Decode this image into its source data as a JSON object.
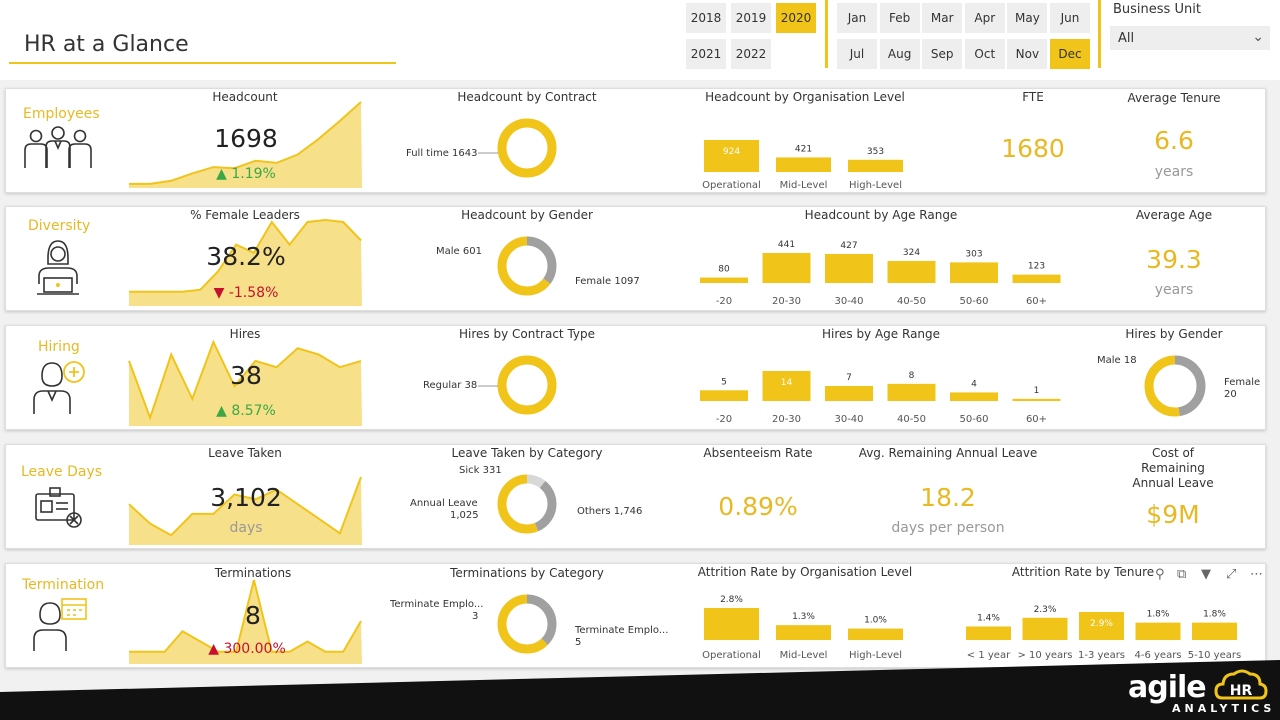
{
  "header": {
    "title": "HR at a Glance",
    "years": [
      "2018",
      "2019",
      "2020",
      "2021",
      "2022"
    ],
    "selected_year": "2020",
    "months": [
      "Jan",
      "Feb",
      "Mar",
      "Apr",
      "May",
      "Jun",
      "Jul",
      "Aug",
      "Sep",
      "Oct",
      "Nov",
      "Dec"
    ],
    "selected_month": "Dec",
    "business_unit_label": "Business Unit",
    "business_unit_value": "All"
  },
  "colors": {
    "accent": "#f0c419",
    "accent_light": "#f7e08a",
    "gray": "#a0a0a0",
    "up": "#3aa845",
    "down": "#c8102e"
  },
  "employees": {
    "label": "Employees",
    "icon": "employees-group-icon",
    "headcount_title": "Headcount",
    "headcount": "1698",
    "headcount_delta": "1.19%",
    "contract_title": "Headcount by Contract",
    "contract_label": "Full time 1643",
    "org_title": "Headcount by Organisation Level",
    "fte_title": "FTE",
    "fte": "1680",
    "tenure_title": "Average Tenure",
    "tenure": "6.6",
    "tenure_unit": "years"
  },
  "diversity": {
    "label": "Diversity",
    "icon": "female-employee-laptop-icon",
    "leaders_title": "% Female Leaders",
    "leaders": "38.2%",
    "leaders_delta": "-1.58%",
    "gender_title": "Headcount by Gender",
    "male_label": "Male 601",
    "female_label": "Female 1097",
    "age_title": "Headcount by Age Range",
    "avg_age_title": "Average Age",
    "avg_age": "39.3",
    "avg_age_unit": "years"
  },
  "hiring": {
    "label": "Hiring",
    "icon": "hiring-person-plus-icon",
    "hires_title": "Hires",
    "hires": "38",
    "hires_delta": "8.57%",
    "contract_title": "Hires by Contract Type",
    "contract_label": "Regular 38",
    "age_title": "Hires by Age Range",
    "gender_title": "Hires by Gender",
    "male_label": "Male 18",
    "female_label_1": "Female",
    "female_label_2": "20"
  },
  "leave": {
    "label": "Leave Days",
    "icon": "id-badge-cancel-icon",
    "taken_title": "Leave Taken",
    "taken": "3,102",
    "taken_unit": "days",
    "category_title": "Leave Taken by Category",
    "sick_label": "Sick 331",
    "annual_label_1": "Annual Leave",
    "annual_label_2": "1,025",
    "others_label": "Others 1,746",
    "absent_title": "Absenteeism Rate",
    "absent": "0.89%",
    "remaining_title": "Avg. Remaining Annual Leave",
    "remaining": "18.2",
    "remaining_unit": "days per person",
    "cost_title_1": "Cost of Remaining",
    "cost_title_2": "Annual Leave",
    "cost": "$9M"
  },
  "termination": {
    "label": "Termination",
    "icon": "employee-calendar-icon",
    "terms_title": "Terminations",
    "terms": "8",
    "terms_delta": "300.00%",
    "category_title": "Terminations by Category",
    "cat1_label_1": "Terminate Emplo...",
    "cat1_label_2": "3",
    "cat2_label_1": "Terminate Emplo...",
    "cat2_label_2": "5",
    "org_title": "Attrition Rate by Organisation Level",
    "tenure_title": "Attrition Rate by Tenure"
  },
  "toolbar": {
    "icons": [
      "pin-icon",
      "copy-visual-icon",
      "filter-icon",
      "focus-mode-icon",
      "more-options-icon"
    ]
  },
  "footer": {
    "logo_word": "agile",
    "logo_hr": "HR",
    "logo_sub": "ANALYTICS"
  },
  "chart_data": [
    {
      "id": "headcount_trend",
      "type": "area",
      "values": [
        2,
        2,
        5,
        12,
        18,
        17,
        24,
        22,
        30,
        45,
        62,
        80
      ]
    },
    {
      "id": "contract",
      "type": "pie",
      "slices": [
        {
          "name": "Full time",
          "value": 1643
        }
      ]
    },
    {
      "id": "org_level",
      "type": "bar",
      "categories": [
        "Operational",
        "Mid-Level",
        "High-Level"
      ],
      "values": [
        924,
        421,
        353
      ]
    },
    {
      "id": "female_leaders_trend",
      "type": "area",
      "values": [
        12,
        12,
        12,
        12,
        14,
        32,
        58,
        50,
        80,
        58,
        80,
        82,
        80,
        62
      ]
    },
    {
      "id": "gender",
      "type": "pie",
      "slices": [
        {
          "name": "Male",
          "value": 601
        },
        {
          "name": "Female",
          "value": 1097
        }
      ]
    },
    {
      "id": "age_range",
      "type": "bar",
      "categories": [
        "-20",
        "20-30",
        "30-40",
        "40-50",
        "50-60",
        "60+"
      ],
      "values": [
        80,
        441,
        427,
        324,
        303,
        123
      ]
    },
    {
      "id": "hires_trend",
      "type": "area",
      "values": [
        50,
        5,
        55,
        20,
        65,
        30,
        50,
        45,
        60,
        55,
        45,
        50
      ]
    },
    {
      "id": "hires_contract",
      "type": "pie",
      "slices": [
        {
          "name": "Regular",
          "value": 38
        }
      ]
    },
    {
      "id": "hires_age",
      "type": "bar",
      "categories": [
        "-20",
        "20-30",
        "30-40",
        "40-50",
        "50-60",
        "60+"
      ],
      "values": [
        5,
        14,
        7,
        8,
        4,
        1
      ]
    },
    {
      "id": "hires_gender",
      "type": "pie",
      "slices": [
        {
          "name": "Male",
          "value": 18
        },
        {
          "name": "Female",
          "value": 20
        }
      ]
    },
    {
      "id": "leave_trend",
      "type": "area",
      "values": [
        40,
        20,
        8,
        30,
        30,
        50,
        45,
        55,
        40,
        25,
        10,
        68
      ]
    },
    {
      "id": "leave_category",
      "type": "pie",
      "slices": [
        {
          "name": "Sick",
          "value": 331
        },
        {
          "name": "Annual Leave",
          "value": 1025
        },
        {
          "name": "Others",
          "value": 1746
        }
      ]
    },
    {
      "id": "terms_trend",
      "type": "area",
      "values": [
        1,
        1,
        1,
        3,
        2,
        1,
        1,
        8,
        1,
        1,
        2,
        1,
        1,
        4
      ]
    },
    {
      "id": "terms_category",
      "type": "pie",
      "slices": [
        {
          "name": "Terminate Emplo...",
          "value": 3
        },
        {
          "name": "Terminate Emplo...",
          "value": 5
        }
      ]
    },
    {
      "id": "attrition_org",
      "type": "bar",
      "categories": [
        "Operational",
        "Mid-Level",
        "High-Level"
      ],
      "values": [
        2.8,
        1.3,
        1.0
      ],
      "labels": [
        "2.8%",
        "1.3%",
        "1.0%"
      ]
    },
    {
      "id": "attrition_tenure",
      "type": "bar",
      "categories": [
        "< 1 year",
        "> 10 years",
        "1-3 years",
        "4-6 years",
        "5-10 years"
      ],
      "values": [
        1.4,
        2.3,
        2.9,
        1.8,
        1.8
      ],
      "labels": [
        "1.4%",
        "2.3%",
        "2.9%",
        "1.8%",
        "1.8%"
      ]
    }
  ]
}
